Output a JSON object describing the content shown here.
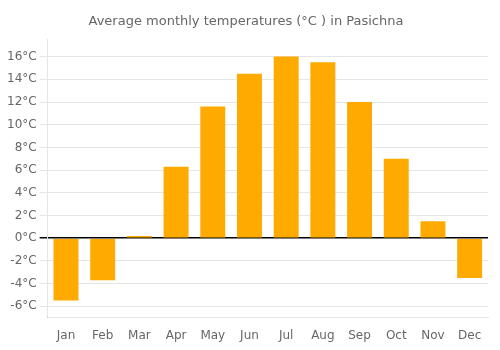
{
  "chart_data": {
    "type": "bar",
    "title": "Average monthly temperatures (°C ) in Pasichna",
    "categories": [
      "Jan",
      "Feb",
      "Mar",
      "Apr",
      "May",
      "Jun",
      "Jul",
      "Aug",
      "Sep",
      "Oct",
      "Nov",
      "Dec"
    ],
    "values": [
      -5.5,
      -3.7,
      0.2,
      6.3,
      11.6,
      14.5,
      16.0,
      15.5,
      12.0,
      7.0,
      1.5,
      -3.5
    ],
    "color": "#FFAA00",
    "ylim": [
      -7,
      17.5
    ],
    "yticks": [
      {
        "value": -6,
        "label": "-6°C"
      },
      {
        "value": -4,
        "label": "-4°C"
      },
      {
        "value": -2,
        "label": "-2°C"
      },
      {
        "value": 0,
        "label": "0°C"
      },
      {
        "value": 2,
        "label": "2°C"
      },
      {
        "value": 4,
        "label": "4°C"
      },
      {
        "value": 6,
        "label": "6°C"
      },
      {
        "value": 8,
        "label": "8°C"
      },
      {
        "value": 10,
        "label": "10°C"
      },
      {
        "value": 12,
        "label": "12°C"
      },
      {
        "value": 14,
        "label": "14°C"
      },
      {
        "value": 16,
        "label": "16°C"
      }
    ],
    "grid": true
  }
}
